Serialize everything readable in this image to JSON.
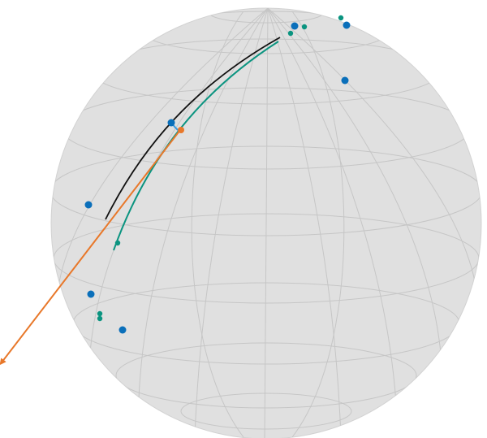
{
  "figure": {
    "type": "bloch-sphere-3d",
    "colors": {
      "sphere_fill": "#e0e0e0",
      "grid_line": "#c4c4c4",
      "blue": "#0a6fba",
      "teal": "#0b9480",
      "black": "#111111",
      "orange": "#e8782a",
      "arc_light_blue": "#3b9be0"
    },
    "markers": {
      "blue_points": 7,
      "teal_points": 6
    },
    "curves": [
      "black-trajectory",
      "teal-trajectory"
    ],
    "vector": "orange-arrow"
  }
}
